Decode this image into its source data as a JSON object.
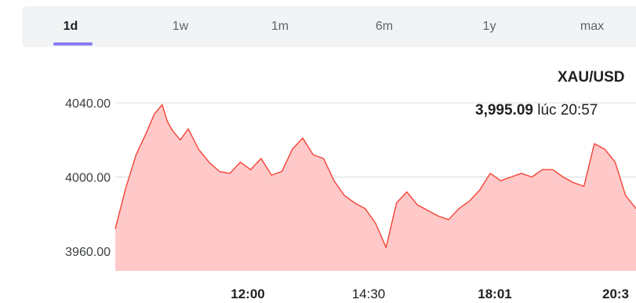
{
  "tabs": [
    {
      "label": "1d",
      "active": true
    },
    {
      "label": "1w",
      "active": false
    },
    {
      "label": "1m",
      "active": false
    },
    {
      "label": "6m",
      "active": false
    },
    {
      "label": "1y",
      "active": false
    },
    {
      "label": "max",
      "active": false
    }
  ],
  "quote": {
    "symbol": "XAU/USD",
    "price": "3,995.09",
    "time_text": "lúc 20:57"
  },
  "chart_data": {
    "type": "area",
    "title": "",
    "xlabel": "",
    "ylabel": "",
    "ylim": [
      3955,
      4055
    ],
    "y_ticks": [
      "4040.00",
      "4000.00",
      "3960.00"
    ],
    "y_tick_values": [
      4040,
      4000,
      3960
    ],
    "x_ticks": [
      "12:00",
      "14:30",
      "18:01",
      "20:3"
    ],
    "grid": true,
    "line_color": "#f44336",
    "fill_color": "#ffc9c9",
    "series": [
      {
        "x": [
          0,
          0.02,
          0.04,
          0.06,
          0.075,
          0.09,
          0.1,
          0.11,
          0.125,
          0.14,
          0.16,
          0.18,
          0.2,
          0.22,
          0.24,
          0.26,
          0.28,
          0.3,
          0.32,
          0.34,
          0.36,
          0.38,
          0.4,
          0.42,
          0.44,
          0.46,
          0.48,
          0.5,
          0.52,
          0.54,
          0.56,
          0.58,
          0.6,
          0.62,
          0.64,
          0.66,
          0.68,
          0.7,
          0.72,
          0.74,
          0.76,
          0.78,
          0.8,
          0.82,
          0.84,
          0.86,
          0.88,
          0.9,
          0.92,
          0.94,
          0.96,
          0.98,
          1.0
        ],
        "values": [
          3972,
          3994,
          4012,
          4024,
          4034,
          4039,
          4030,
          4025,
          4020,
          4026,
          4015,
          4008,
          4003,
          4002,
          4008,
          4004,
          4010,
          4001,
          4003,
          4015,
          4021,
          4012,
          4010,
          3998,
          3990,
          3986,
          3983,
          3975,
          3962,
          3986,
          3992,
          3985,
          3982,
          3979,
          3977,
          3983,
          3987,
          3993,
          4002,
          3998,
          4000,
          4002,
          4000,
          4004,
          4004,
          4000,
          3997,
          3995,
          4018,
          4015,
          4008,
          3990,
          3983
        ]
      }
    ]
  }
}
